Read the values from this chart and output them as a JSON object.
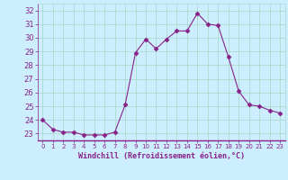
{
  "x": [
    0,
    1,
    2,
    3,
    4,
    5,
    6,
    7,
    8,
    9,
    10,
    11,
    12,
    13,
    14,
    15,
    16,
    17,
    18,
    19,
    20,
    21,
    22,
    23
  ],
  "y": [
    24.0,
    23.3,
    23.1,
    23.1,
    22.9,
    22.9,
    22.9,
    23.1,
    25.1,
    28.9,
    29.9,
    29.2,
    29.9,
    30.5,
    30.5,
    31.8,
    31.0,
    30.9,
    28.6,
    26.1,
    25.1,
    25.0,
    24.7,
    24.5
  ],
  "line_color": "#882288",
  "marker": "D",
  "marker_size": 2.5,
  "bg_color": "#cceeff",
  "grid_color": "#aaddcc",
  "xlabel": "Windchill (Refroidissement éolien,°C)",
  "xlabel_color": "#882288",
  "tick_color": "#882288",
  "ylim": [
    22.5,
    32.5
  ],
  "xlim": [
    -0.5,
    23.5
  ],
  "yticks": [
    23,
    24,
    25,
    26,
    27,
    28,
    29,
    30,
    31,
    32
  ],
  "xticks": [
    0,
    1,
    2,
    3,
    4,
    5,
    6,
    7,
    8,
    9,
    10,
    11,
    12,
    13,
    14,
    15,
    16,
    17,
    18,
    19,
    20,
    21,
    22,
    23
  ]
}
